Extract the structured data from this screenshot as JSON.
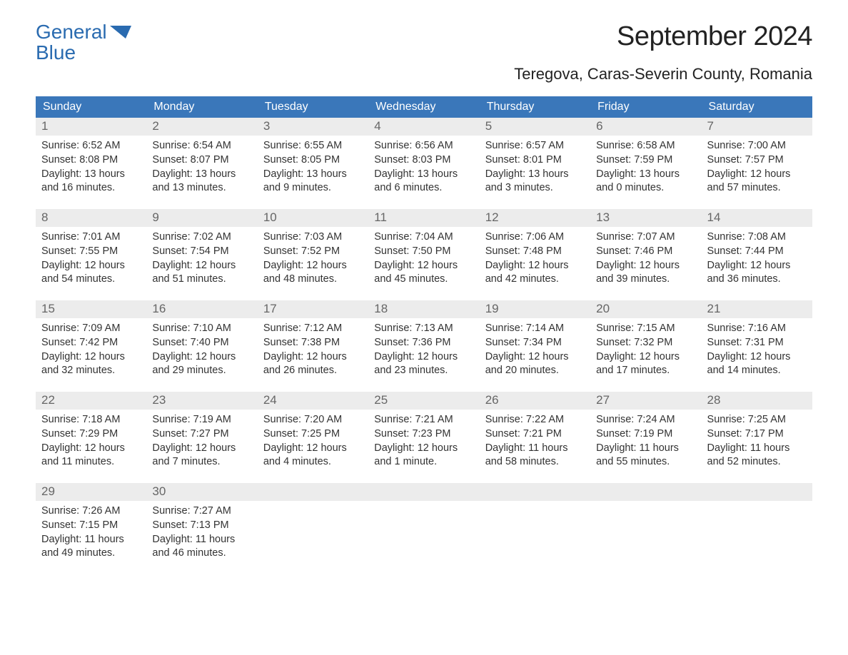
{
  "logo": {
    "line1": "General",
    "line2": "Blue",
    "brand_color": "#2a6bb0"
  },
  "title": "September 2024",
  "location": "Teregova, Caras-Severin County, Romania",
  "colors": {
    "header_bg": "#3a77ba",
    "header_text": "#ffffff",
    "row_rule": "#3a77ba",
    "daynum_bg": "#ececec",
    "daynum_text": "#666666",
    "body_text": "#333333",
    "page_bg": "#ffffff"
  },
  "typography": {
    "title_fontsize": 38,
    "location_fontsize": 22,
    "header_fontsize": 16,
    "daynum_fontsize": 17,
    "body_fontsize": 14.5,
    "logo_fontsize": 28
  },
  "weekdays": [
    "Sunday",
    "Monday",
    "Tuesday",
    "Wednesday",
    "Thursday",
    "Friday",
    "Saturday"
  ],
  "labels": {
    "sunrise": "Sunrise:",
    "sunset": "Sunset:",
    "daylight": "Daylight:"
  },
  "weeks": [
    [
      {
        "day": 1,
        "sunrise": "6:52 AM",
        "sunset": "8:08 PM",
        "daylight": "13 hours and 16 minutes."
      },
      {
        "day": 2,
        "sunrise": "6:54 AM",
        "sunset": "8:07 PM",
        "daylight": "13 hours and 13 minutes."
      },
      {
        "day": 3,
        "sunrise": "6:55 AM",
        "sunset": "8:05 PM",
        "daylight": "13 hours and 9 minutes."
      },
      {
        "day": 4,
        "sunrise": "6:56 AM",
        "sunset": "8:03 PM",
        "daylight": "13 hours and 6 minutes."
      },
      {
        "day": 5,
        "sunrise": "6:57 AM",
        "sunset": "8:01 PM",
        "daylight": "13 hours and 3 minutes."
      },
      {
        "day": 6,
        "sunrise": "6:58 AM",
        "sunset": "7:59 PM",
        "daylight": "13 hours and 0 minutes."
      },
      {
        "day": 7,
        "sunrise": "7:00 AM",
        "sunset": "7:57 PM",
        "daylight": "12 hours and 57 minutes."
      }
    ],
    [
      {
        "day": 8,
        "sunrise": "7:01 AM",
        "sunset": "7:55 PM",
        "daylight": "12 hours and 54 minutes."
      },
      {
        "day": 9,
        "sunrise": "7:02 AM",
        "sunset": "7:54 PM",
        "daylight": "12 hours and 51 minutes."
      },
      {
        "day": 10,
        "sunrise": "7:03 AM",
        "sunset": "7:52 PM",
        "daylight": "12 hours and 48 minutes."
      },
      {
        "day": 11,
        "sunrise": "7:04 AM",
        "sunset": "7:50 PM",
        "daylight": "12 hours and 45 minutes."
      },
      {
        "day": 12,
        "sunrise": "7:06 AM",
        "sunset": "7:48 PM",
        "daylight": "12 hours and 42 minutes."
      },
      {
        "day": 13,
        "sunrise": "7:07 AM",
        "sunset": "7:46 PM",
        "daylight": "12 hours and 39 minutes."
      },
      {
        "day": 14,
        "sunrise": "7:08 AM",
        "sunset": "7:44 PM",
        "daylight": "12 hours and 36 minutes."
      }
    ],
    [
      {
        "day": 15,
        "sunrise": "7:09 AM",
        "sunset": "7:42 PM",
        "daylight": "12 hours and 32 minutes."
      },
      {
        "day": 16,
        "sunrise": "7:10 AM",
        "sunset": "7:40 PM",
        "daylight": "12 hours and 29 minutes."
      },
      {
        "day": 17,
        "sunrise": "7:12 AM",
        "sunset": "7:38 PM",
        "daylight": "12 hours and 26 minutes."
      },
      {
        "day": 18,
        "sunrise": "7:13 AM",
        "sunset": "7:36 PM",
        "daylight": "12 hours and 23 minutes."
      },
      {
        "day": 19,
        "sunrise": "7:14 AM",
        "sunset": "7:34 PM",
        "daylight": "12 hours and 20 minutes."
      },
      {
        "day": 20,
        "sunrise": "7:15 AM",
        "sunset": "7:32 PM",
        "daylight": "12 hours and 17 minutes."
      },
      {
        "day": 21,
        "sunrise": "7:16 AM",
        "sunset": "7:31 PM",
        "daylight": "12 hours and 14 minutes."
      }
    ],
    [
      {
        "day": 22,
        "sunrise": "7:18 AM",
        "sunset": "7:29 PM",
        "daylight": "12 hours and 11 minutes."
      },
      {
        "day": 23,
        "sunrise": "7:19 AM",
        "sunset": "7:27 PM",
        "daylight": "12 hours and 7 minutes."
      },
      {
        "day": 24,
        "sunrise": "7:20 AM",
        "sunset": "7:25 PM",
        "daylight": "12 hours and 4 minutes."
      },
      {
        "day": 25,
        "sunrise": "7:21 AM",
        "sunset": "7:23 PM",
        "daylight": "12 hours and 1 minute."
      },
      {
        "day": 26,
        "sunrise": "7:22 AM",
        "sunset": "7:21 PM",
        "daylight": "11 hours and 58 minutes."
      },
      {
        "day": 27,
        "sunrise": "7:24 AM",
        "sunset": "7:19 PM",
        "daylight": "11 hours and 55 minutes."
      },
      {
        "day": 28,
        "sunrise": "7:25 AM",
        "sunset": "7:17 PM",
        "daylight": "11 hours and 52 minutes."
      }
    ],
    [
      {
        "day": 29,
        "sunrise": "7:26 AM",
        "sunset": "7:15 PM",
        "daylight": "11 hours and 49 minutes."
      },
      {
        "day": 30,
        "sunrise": "7:27 AM",
        "sunset": "7:13 PM",
        "daylight": "11 hours and 46 minutes."
      },
      null,
      null,
      null,
      null,
      null
    ]
  ]
}
